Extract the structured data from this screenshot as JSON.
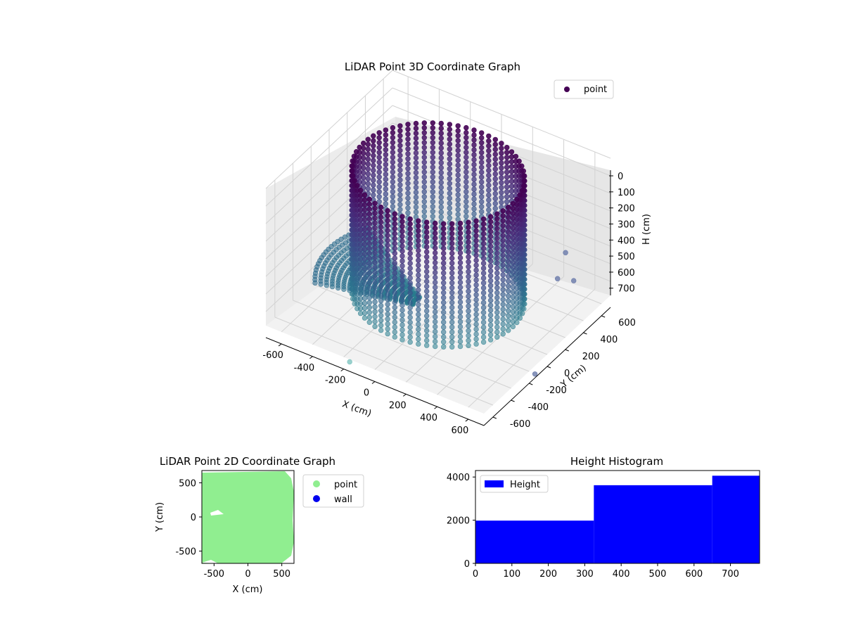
{
  "chart_data": [
    {
      "type": "scatter",
      "projection": "3d",
      "title": "LiDAR Point 3D Coordinate Graph",
      "xlabel": "X (cm)",
      "ylabel": "Y (cm)",
      "zlabel": "H (cm)",
      "xlim": [
        -700,
        700
      ],
      "ylim": [
        -700,
        700
      ],
      "zlim": [
        780,
        0
      ],
      "xticks": [
        -600,
        -400,
        -200,
        0,
        200,
        400,
        600
      ],
      "yticks": [
        -600,
        -400,
        -200,
        0,
        200,
        400,
        600
      ],
      "zticks": [
        0,
        100,
        200,
        300,
        400,
        500,
        600,
        700
      ],
      "z_inverted": true,
      "grid": true,
      "colormap": "viridis",
      "legend": {
        "position": "top-right",
        "entries": [
          {
            "label": "point",
            "color": "#440154"
          }
        ]
      },
      "wall": {
        "shape": "cylinder",
        "radius": 480,
        "height_range": [
          0,
          700
        ]
      },
      "outliers": [
        {
          "x": -150,
          "y": -720,
          "h": 780,
          "color": "#7fc4c0"
        },
        {
          "x": 720,
          "y": 80,
          "h": 380,
          "color": "#6a7aaa"
        },
        {
          "x": 760,
          "y": 190,
          "h": 430,
          "color": "#6a7aaa"
        },
        {
          "x": 790,
          "y": -290,
          "h": 720,
          "color": "#6a7aaa"
        },
        {
          "x": 690,
          "y": 220,
          "h": 310,
          "color": "#6a7aaa"
        }
      ]
    },
    {
      "type": "scatter",
      "title": "LiDAR Point 2D Coordinate Graph",
      "xlabel": "X (cm)",
      "ylabel": "Y (cm)",
      "xlim": [
        -680,
        680
      ],
      "ylim": [
        -680,
        680
      ],
      "xticks": [
        -500,
        0,
        500
      ],
      "yticks": [
        -500,
        0,
        500
      ],
      "legend": {
        "position": "right",
        "entries": [
          {
            "label": "point",
            "color": "#90ee90"
          },
          {
            "label": "wall",
            "color": "#0000ee"
          }
        ]
      }
    },
    {
      "type": "bar",
      "title": "Height Histogram",
      "xlim": [
        0,
        780
      ],
      "ylim": [
        0,
        4300
      ],
      "xticks": [
        0,
        100,
        200,
        300,
        400,
        500,
        600,
        700
      ],
      "yticks": [
        0,
        2000,
        4000
      ],
      "bins": [
        {
          "from": 0,
          "to": 325,
          "count": 1980
        },
        {
          "from": 325,
          "to": 650,
          "count": 3620
        },
        {
          "from": 650,
          "to": 780,
          "count": 4060
        }
      ],
      "color": "#0000ff",
      "legend": {
        "position": "top-left",
        "entries": [
          {
            "label": "Height",
            "color": "#0000ff"
          }
        ]
      }
    }
  ]
}
